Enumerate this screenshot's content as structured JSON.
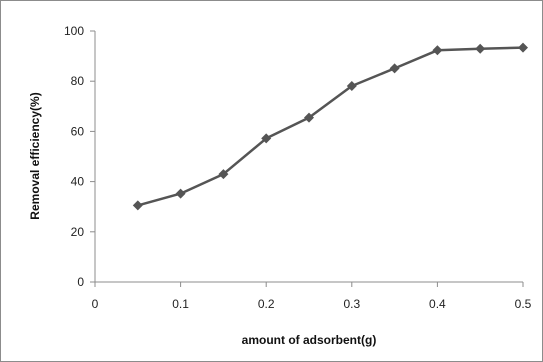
{
  "chart_data": {
    "type": "line",
    "title": "",
    "xlabel": "amount of adsorbent(g)",
    "ylabel": "Removal efficiency(%)",
    "x": [
      0.05,
      0.1,
      0.15,
      0.2,
      0.25,
      0.3,
      0.35,
      0.4,
      0.45,
      0.5
    ],
    "series": [
      {
        "values": [
          30.5,
          35.2,
          43.0,
          57.2,
          65.5,
          78.1,
          85.1,
          92.3,
          92.9,
          93.4
        ],
        "color": "#555555",
        "marker": "diamond"
      }
    ],
    "xlim": [
      0,
      0.5
    ],
    "ylim": [
      0,
      100
    ],
    "x_ticks": [
      "0",
      "0.1",
      "0.2",
      "0.3",
      "0.4",
      "0.5"
    ],
    "y_ticks": [
      "0",
      "20",
      "40",
      "60",
      "80",
      "100"
    ],
    "grid": false,
    "legend": "none"
  }
}
